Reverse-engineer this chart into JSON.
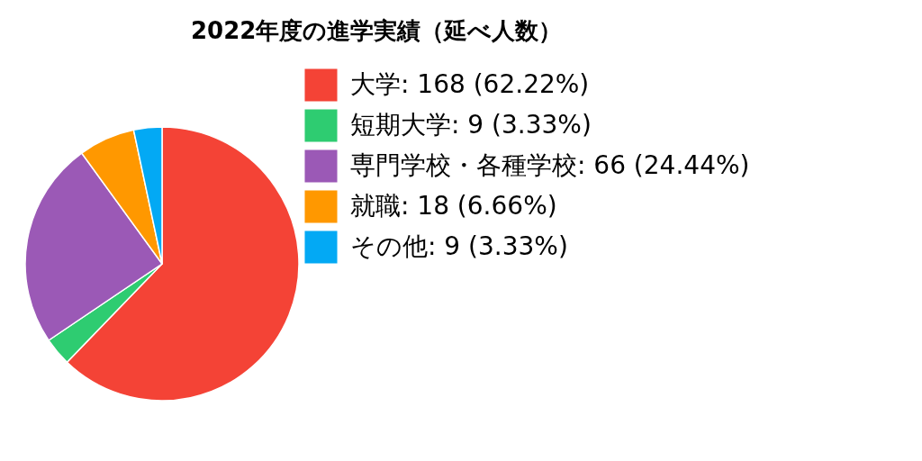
{
  "chart_data": {
    "type": "pie",
    "title": "2022年度の進学実績（延べ人数）",
    "categories": [
      "大学: 168 (62.22%)",
      "短期大学: 9 (3.33%)",
      "専門学校・各種学校: 66 (24.44%)",
      "就職: 18 (6.66%)",
      "その他: 9 (3.33%)"
    ],
    "values": [
      168,
      9,
      66,
      18,
      9
    ],
    "colors": [
      "#f44336",
      "#2ecc71",
      "#9b59b6",
      "#ff9800",
      "#03a9f4"
    ],
    "legend": "right"
  }
}
